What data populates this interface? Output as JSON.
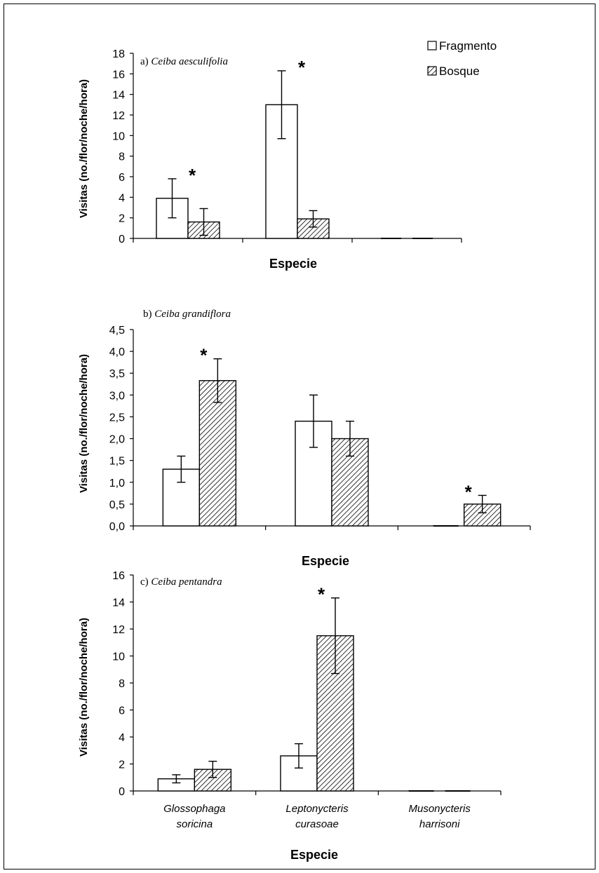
{
  "legend": {
    "items": [
      {
        "label": "Fragmento",
        "fill": "white"
      },
      {
        "label": "Bosque",
        "fill": "hatched"
      }
    ]
  },
  "chart_data": [
    {
      "type": "bar",
      "panel_letter": "a)",
      "title": "Ceiba aesculifolia",
      "xlabel": "Especie",
      "ylabel": "Visitas (no./flor/noche/hora)",
      "ylim": [
        0,
        18
      ],
      "yticks": [
        "0",
        "2",
        "4",
        "6",
        "8",
        "10",
        "12",
        "14",
        "16",
        "18"
      ],
      "tick_labels_shown": false,
      "categories": [
        "Glossophaga soricina",
        "Leptonycteris curasoae",
        "Musonycteris harrisoni"
      ],
      "series": [
        {
          "name": "Fragmento",
          "values": [
            3.9,
            13.0,
            0
          ],
          "errors": [
            1.9,
            3.3,
            0
          ]
        },
        {
          "name": "Bosque",
          "values": [
            1.6,
            1.9,
            0
          ],
          "errors": [
            1.3,
            0.8,
            0
          ]
        }
      ],
      "stars": [
        {
          "category": 0,
          "label": "*"
        },
        {
          "category": 1,
          "label": "*"
        }
      ]
    },
    {
      "type": "bar",
      "panel_letter": "b)",
      "title": "Ceiba grandiflora",
      "xlabel": "Especie",
      "ylabel": "Visitas (no./flor/noche/hora)",
      "ylim": [
        0,
        4.5
      ],
      "yticks": [
        "0,0",
        "0,5",
        "1,0",
        "1,5",
        "2,0",
        "2,5",
        "3,0",
        "3,5",
        "4,0",
        "4,5"
      ],
      "tick_labels_shown": false,
      "categories": [
        "Glossophaga soricina",
        "Leptonycteris curasoae",
        "Musonycteris harrisoni"
      ],
      "series": [
        {
          "name": "Fragmento",
          "values": [
            1.3,
            2.4,
            0
          ],
          "errors": [
            0.3,
            0.6,
            0
          ]
        },
        {
          "name": "Bosque",
          "values": [
            3.33,
            2.0,
            0.5
          ],
          "errors": [
            0.5,
            0.4,
            0.2
          ]
        }
      ],
      "stars": [
        {
          "category": 0,
          "label": "*"
        },
        {
          "category": 2,
          "label": "*"
        }
      ]
    },
    {
      "type": "bar",
      "panel_letter": "c)",
      "title": "Ceiba pentandra",
      "xlabel": "Especie",
      "ylabel": "Visitas (no./flor/noche/hora)",
      "ylim": [
        0,
        16
      ],
      "yticks": [
        "0",
        "2",
        "4",
        "6",
        "8",
        "10",
        "12",
        "14",
        "16"
      ],
      "tick_labels_shown": true,
      "categories": [
        "Glossophaga soricina",
        "Leptonycteris curasoae",
        "Musonycteris harrisoni"
      ],
      "category_lines": [
        [
          "Glossophaga",
          "soricina"
        ],
        [
          "Leptonycteris",
          "curasoae"
        ],
        [
          "Musonycteris",
          "harrisoni"
        ]
      ],
      "series": [
        {
          "name": "Fragmento",
          "values": [
            0.9,
            2.6,
            0
          ],
          "errors": [
            0.3,
            0.9,
            0
          ]
        },
        {
          "name": "Bosque",
          "values": [
            1.6,
            11.5,
            0
          ],
          "errors": [
            0.6,
            2.8,
            0
          ]
        }
      ],
      "stars": [
        {
          "category": 1,
          "label": "*"
        }
      ]
    }
  ]
}
